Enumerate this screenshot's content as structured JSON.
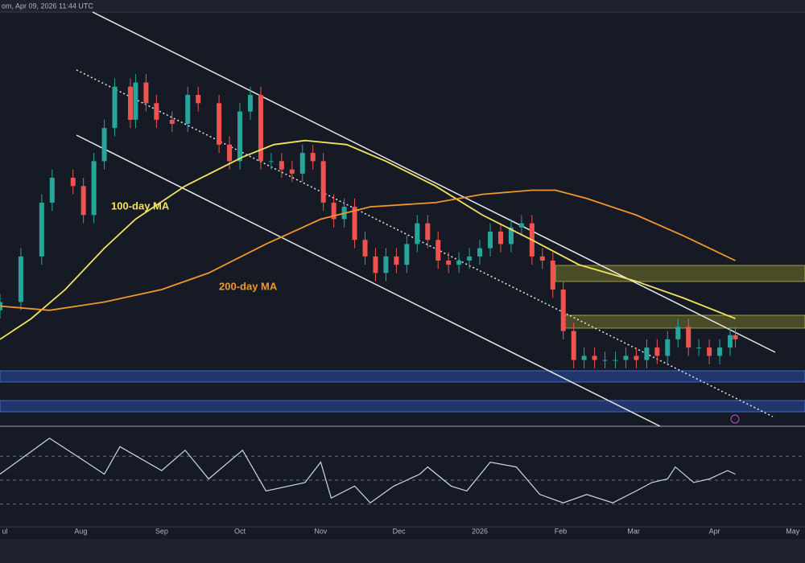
{
  "chart_data": {
    "type": "candlestick",
    "subtitle": "om, Apr 09, 2026 11:44 UTC",
    "up_color": "#26a69a",
    "down_color": "#ef5350",
    "xlim": [
      0,
      308.7
    ],
    "ylim": [
      0,
      100
    ],
    "xticks": [
      {
        "value": 0,
        "label": "ul"
      },
      {
        "value": 31,
        "label": "Aug"
      },
      {
        "value": 62,
        "label": "Sep"
      },
      {
        "value": 92,
        "label": "Oct"
      },
      {
        "value": 123,
        "label": "Nov"
      },
      {
        "value": 153,
        "label": "Dec"
      },
      {
        "value": 184,
        "label": "2026"
      },
      {
        "value": 215,
        "label": "Feb"
      },
      {
        "value": 243,
        "label": "Mar"
      },
      {
        "value": 274,
        "label": "Apr"
      },
      {
        "value": 304,
        "label": "May"
      }
    ],
    "candles": {
      "x": [
        0,
        8,
        16,
        20,
        28,
        32,
        36,
        40,
        44,
        50,
        52,
        56,
        60,
        66,
        72,
        76,
        84,
        88,
        92,
        96,
        100,
        104,
        108,
        112,
        116,
        120,
        124,
        128,
        132,
        136,
        140,
        144,
        148,
        152,
        156,
        160,
        164,
        168,
        172,
        176,
        180,
        184,
        188,
        192,
        196,
        200,
        204,
        208,
        212,
        216,
        220,
        224,
        228,
        232,
        236,
        240,
        244,
        248,
        252,
        256,
        260,
        264,
        268,
        272,
        276,
        280,
        282
      ],
      "open": [
        28,
        30,
        41,
        54,
        60,
        58,
        51,
        64,
        72,
        82,
        74,
        83,
        78,
        74,
        73,
        80,
        78,
        68,
        64,
        76,
        80,
        64,
        64,
        62,
        61,
        66,
        64,
        54,
        50,
        53,
        45,
        41,
        37,
        41,
        39,
        44,
        49,
        45,
        40,
        39,
        40,
        41,
        43,
        47,
        44,
        48,
        49,
        41,
        40,
        33,
        23,
        16,
        17,
        16,
        16,
        16,
        17,
        16,
        19,
        17,
        21,
        24,
        19,
        19,
        17,
        19,
        22
      ],
      "high": [
        32,
        43,
        56,
        62,
        62,
        60,
        66,
        74,
        84,
        84,
        85,
        85,
        80,
        76,
        82,
        82,
        80,
        70,
        78,
        82,
        82,
        66,
        66,
        64,
        68,
        68,
        66,
        56,
        55,
        55,
        47,
        43,
        43,
        43,
        46,
        51,
        51,
        47,
        42,
        42,
        43,
        45,
        49,
        49,
        50,
        51,
        51,
        43,
        42,
        35,
        25,
        19,
        19,
        18,
        18,
        19,
        19,
        21,
        21,
        23,
        26,
        26,
        21,
        21,
        21,
        24,
        24
      ],
      "low": [
        26,
        28,
        39,
        52,
        56,
        49,
        49,
        62,
        70,
        72,
        72,
        76,
        72,
        71,
        71,
        76,
        66,
        62,
        62,
        74,
        62,
        62,
        60,
        59,
        59,
        62,
        52,
        48,
        48,
        43,
        39,
        35,
        35,
        37,
        37,
        42,
        43,
        38,
        37,
        37,
        38,
        39,
        41,
        42,
        42,
        46,
        39,
        38,
        31,
        21,
        14,
        14,
        14,
        14,
        14,
        14,
        14,
        14,
        15,
        15,
        19,
        17,
        17,
        15,
        15,
        17,
        19
      ],
      "close": [
        30,
        41,
        54,
        60,
        58,
        51,
        64,
        72,
        82,
        74,
        83,
        78,
        74,
        73,
        80,
        78,
        68,
        64,
        76,
        80,
        64,
        64,
        62,
        61,
        66,
        64,
        54,
        50,
        53,
        45,
        41,
        37,
        41,
        39,
        44,
        49,
        45,
        40,
        39,
        40,
        41,
        43,
        47,
        44,
        48,
        49,
        41,
        40,
        33,
        23,
        16,
        17,
        16,
        16,
        16,
        17,
        16,
        19,
        17,
        21,
        24,
        19,
        19,
        17,
        19,
        22,
        21
      ]
    },
    "series": [
      {
        "name": "100-day MA",
        "color": "#f2e35c",
        "x": [
          0,
          12,
          25,
          40,
          52,
          71,
          93,
          105,
          117,
          133,
          148,
          167,
          185,
          204,
          222,
          244,
          262,
          282
        ],
        "values": [
          21,
          26,
          33,
          43,
          50,
          58,
          65,
          68,
          69,
          68,
          64,
          58,
          51,
          45,
          39,
          35,
          31,
          26
        ]
      },
      {
        "name": "200-day MA",
        "color": "#f0962a",
        "x": [
          0,
          19,
          40,
          62,
          80,
          102,
          123,
          142,
          167,
          185,
          204,
          213,
          225,
          244,
          262,
          282
        ],
        "values": [
          29,
          28,
          30,
          33,
          37,
          44,
          50,
          53,
          54,
          56,
          57,
          57,
          55,
          51,
          46,
          40
        ]
      }
    ],
    "rsi": {
      "color": "#c9d6f5",
      "ylim": [
        11,
        95
      ],
      "yticks": [
        30,
        50,
        70
      ],
      "x": [
        0,
        19,
        31,
        40,
        46,
        62,
        71,
        80,
        93,
        102,
        117,
        123,
        127,
        136,
        142,
        151,
        161,
        164,
        173,
        179,
        188,
        198,
        207,
        216,
        225,
        235,
        244,
        250,
        256,
        259,
        266,
        272,
        279,
        282
      ],
      "values": [
        55,
        85,
        68,
        55,
        78,
        58,
        75,
        51,
        75,
        41,
        48,
        65,
        35,
        45,
        31,
        45,
        55,
        61,
        45,
        41,
        65,
        61,
        38,
        31,
        38,
        31,
        41,
        48,
        51,
        61,
        48,
        51,
        58,
        55
      ]
    }
  }
}
